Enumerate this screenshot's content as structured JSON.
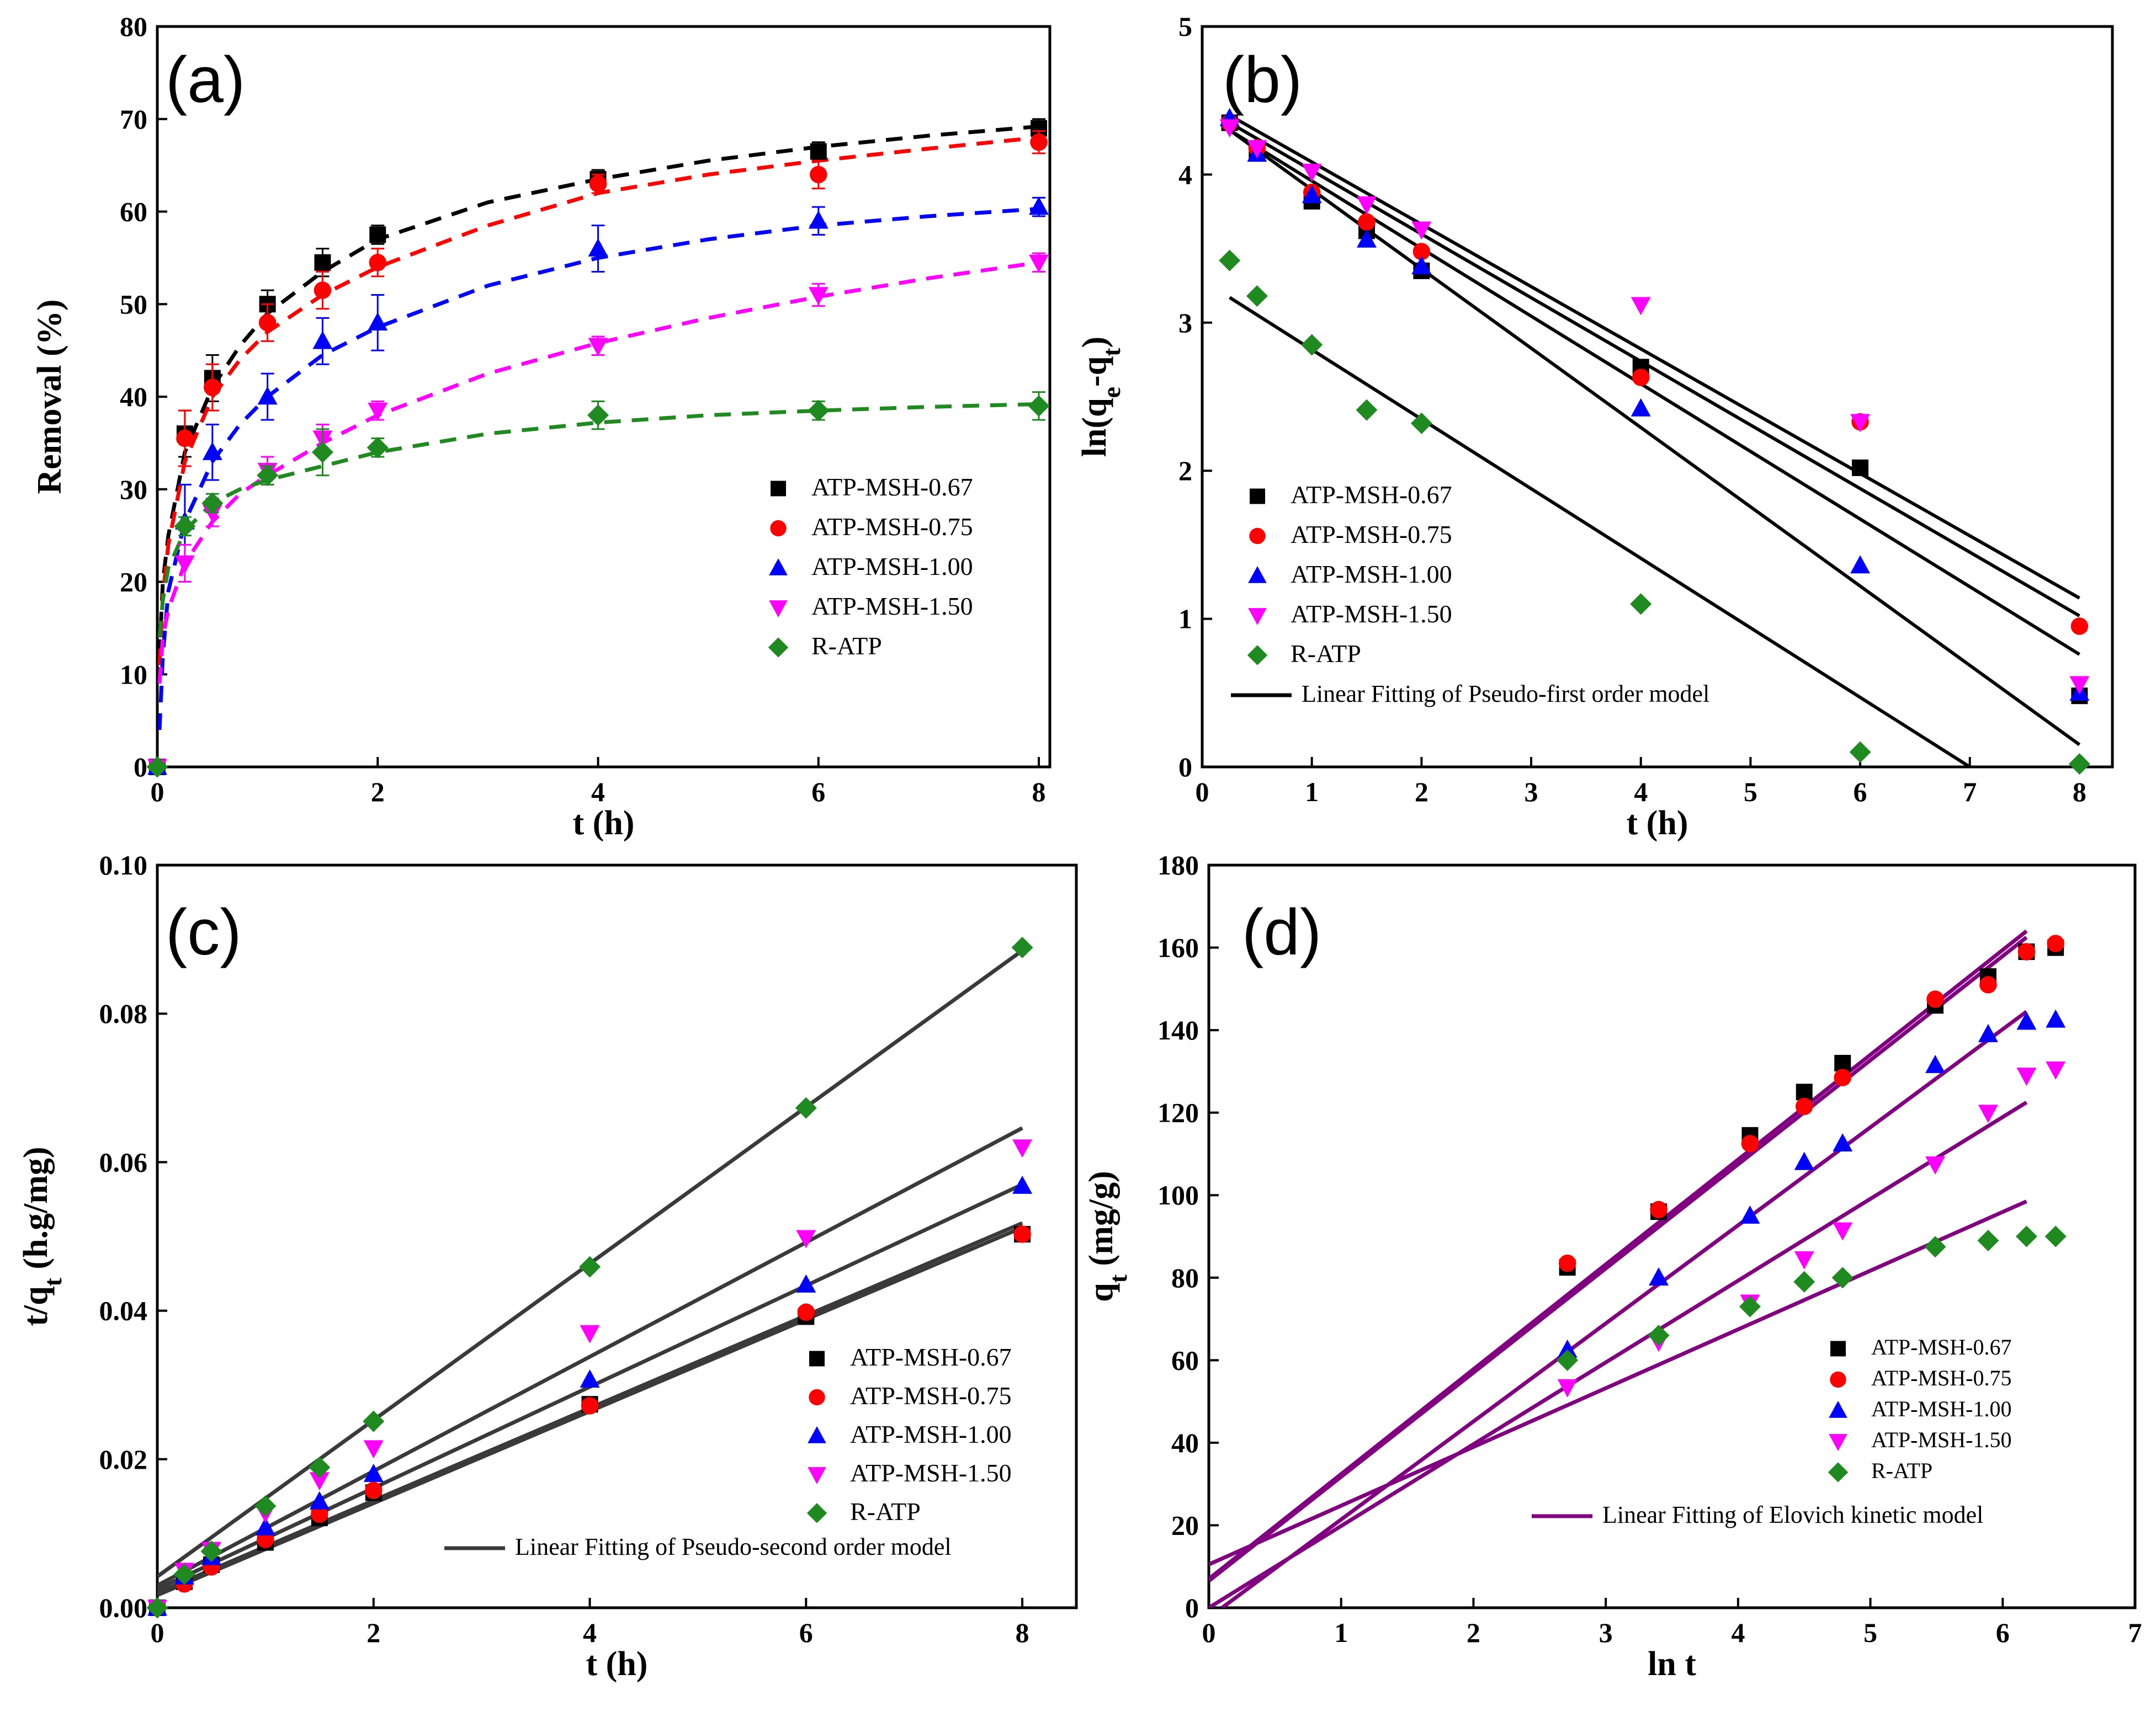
{
  "colors": {
    "ATP-MSH-0.67": "#000000",
    "ATP-MSH-0.75": "#ff0000",
    "ATP-MSH-1.00": "#0000ff",
    "ATP-MSH-1.50": "#ff00ff",
    "R-ATP": "#1f8a1f",
    "fit_b": "#000000",
    "fit_c": "#3a3a3a",
    "fit_d": "#800080"
  },
  "markers": {
    "ATP-MSH-0.67": "square",
    "ATP-MSH-0.75": "circle",
    "ATP-MSH-1.00": "triangle-up",
    "ATP-MSH-1.50": "triangle-down",
    "R-ATP": "diamond"
  },
  "chart_data": [
    {
      "id": "a",
      "panel_label": "(a)",
      "type": "scatter",
      "xlabel": "t (h)",
      "ylabel": "Removal (%)",
      "xlim": [
        0,
        8.1
      ],
      "ylim": [
        0,
        80
      ],
      "xticks": [
        0,
        2,
        4,
        6,
        8
      ],
      "yticks": [
        0,
        10,
        20,
        30,
        40,
        50,
        60,
        70,
        80
      ],
      "legend_position": "center-right",
      "fit_style": "dashed-colored",
      "series": [
        {
          "name": "ATP-MSH-0.67",
          "x": [
            0,
            0.25,
            0.5,
            1,
            1.5,
            2,
            4,
            6,
            8
          ],
          "y": [
            0,
            36,
            42,
            50,
            54.5,
            57.5,
            63.5,
            66.5,
            69
          ],
          "err": [
            0,
            2.5,
            2.5,
            1.5,
            1.5,
            1,
            1,
            1,
            1
          ]
        },
        {
          "name": "ATP-MSH-0.75",
          "x": [
            0,
            0.25,
            0.5,
            1,
            1.5,
            2,
            4,
            6,
            8
          ],
          "y": [
            0,
            35.5,
            41,
            48,
            51.5,
            54.5,
            63,
            64,
            67.5
          ],
          "err": [
            0,
            3,
            2.5,
            2,
            2,
            1.5,
            1,
            1.5,
            1.2
          ]
        },
        {
          "name": "ATP-MSH-1.00",
          "x": [
            0,
            0.25,
            0.5,
            1,
            1.5,
            2,
            4,
            6,
            8
          ],
          "y": [
            0,
            26.5,
            34,
            40,
            46,
            48,
            56,
            59,
            60.5
          ],
          "err": [
            0,
            4,
            3,
            2.5,
            2.5,
            3,
            2.5,
            1.5,
            1
          ]
        },
        {
          "name": "ATP-MSH-1.50",
          "x": [
            0,
            0.25,
            0.5,
            1,
            1.5,
            2,
            4,
            6,
            8
          ],
          "y": [
            0,
            22,
            27.5,
            32,
            35.5,
            38.5,
            45.5,
            51,
            54.5
          ],
          "err": [
            0,
            2,
            1.5,
            1.5,
            1.5,
            1,
            1,
            1.2,
            1
          ]
        },
        {
          "name": "R-ATP",
          "x": [
            0,
            0.25,
            0.5,
            1,
            1.5,
            2,
            4,
            6,
            8
          ],
          "y": [
            0,
            26,
            28.5,
            31.5,
            34,
            34.5,
            38,
            38.5,
            39
          ],
          "err": [
            0,
            1,
            1,
            1,
            2.5,
            1,
            1.5,
            1,
            1.5
          ]
        }
      ],
      "fits": [
        {
          "name": "ATP-MSH-0.67",
          "x": [
            0.02,
            0.05,
            0.1,
            0.25,
            0.5,
            0.75,
            1,
            1.5,
            2,
            3,
            4,
            5,
            6,
            7,
            8
          ],
          "y": [
            12,
            20,
            25,
            34,
            41,
            45.5,
            49,
            53.5,
            57,
            61,
            63.5,
            65.5,
            67,
            68.2,
            69.2
          ]
        },
        {
          "name": "ATP-MSH-0.75",
          "x": [
            0.02,
            0.05,
            0.1,
            0.25,
            0.5,
            0.75,
            1,
            1.5,
            2,
            3,
            4,
            5,
            6,
            7,
            8
          ],
          "y": [
            11,
            18.5,
            24,
            33,
            40,
            44,
            47,
            51,
            54,
            58.5,
            62,
            64,
            65.5,
            66.8,
            68
          ]
        },
        {
          "name": "ATP-MSH-1.00",
          "x": [
            0.02,
            0.05,
            0.1,
            0.25,
            0.5,
            0.75,
            1,
            1.5,
            2,
            3,
            4,
            5,
            6,
            7,
            8
          ],
          "y": [
            4,
            12,
            19,
            26.5,
            33,
            37,
            40,
            44.5,
            47.5,
            52,
            55,
            57,
            58.5,
            59.5,
            60.3
          ]
        },
        {
          "name": "ATP-MSH-1.50",
          "x": [
            0.02,
            0.05,
            0.1,
            0.25,
            0.5,
            0.75,
            1,
            1.5,
            2,
            3,
            4,
            5,
            6,
            7,
            8
          ],
          "y": [
            9,
            14,
            17,
            22,
            26.5,
            29.5,
            31.5,
            35,
            38,
            42.5,
            45.8,
            48.5,
            50.8,
            52.8,
            54.5
          ]
        },
        {
          "name": "R-ATP",
          "x": [
            0.02,
            0.05,
            0.1,
            0.25,
            0.5,
            0.75,
            1,
            1.5,
            2,
            3,
            4,
            5,
            6,
            7,
            8
          ],
          "y": [
            14,
            18,
            21.5,
            25.5,
            28.5,
            30,
            31,
            32.5,
            34,
            36,
            37.2,
            38,
            38.5,
            38.9,
            39.2
          ]
        }
      ]
    },
    {
      "id": "b",
      "panel_label": "(b)",
      "type": "scatter",
      "xlabel": "t (h)",
      "ylabel": "ln(qe-qt)",
      "ylabel_parts": {
        "base": "ln(q",
        "sub1": "e",
        "mid": "-q",
        "sub2": "t",
        "end": ")"
      },
      "xlim": [
        0,
        8.3
      ],
      "ylim": [
        0,
        5
      ],
      "xticks": [
        0,
        1,
        2,
        3,
        4,
        5,
        6,
        7,
        8
      ],
      "yticks": [
        0,
        1,
        2,
        3,
        4,
        5
      ],
      "legend_position": "bottom-left",
      "fit_legend_label": "Linear Fitting of Pseudo-first order model",
      "fit_style": "solid-black",
      "series": [
        {
          "name": "ATP-MSH-0.67",
          "x": [
            0.25,
            0.5,
            1,
            1.5,
            2,
            4,
            6,
            8
          ],
          "y": [
            4.35,
            4.15,
            3.82,
            3.62,
            3.35,
            2.7,
            2.02,
            0.48
          ]
        },
        {
          "name": "ATP-MSH-0.75",
          "x": [
            0.25,
            0.5,
            1,
            1.5,
            2,
            4,
            6,
            8
          ],
          "y": [
            4.35,
            4.18,
            3.88,
            3.68,
            3.48,
            2.63,
            2.33,
            0.95
          ]
        },
        {
          "name": "ATP-MSH-1.00",
          "x": [
            0.25,
            0.5,
            1,
            1.5,
            2,
            4,
            6,
            8
          ],
          "y": [
            4.38,
            4.14,
            3.86,
            3.56,
            3.38,
            2.42,
            1.36,
            0.5
          ]
        },
        {
          "name": "ATP-MSH-1.50",
          "x": [
            0.25,
            0.5,
            1,
            1.5,
            2,
            4,
            6,
            8
          ],
          "y": [
            4.32,
            4.18,
            4.02,
            3.8,
            3.63,
            3.12,
            2.33,
            0.56
          ]
        },
        {
          "name": "R-ATP",
          "x": [
            0.25,
            0.5,
            1,
            1.5,
            2,
            4,
            6,
            8
          ],
          "y": [
            3.42,
            3.18,
            2.85,
            2.41,
            2.32,
            1.1,
            0.1,
            0.02
          ]
        }
      ],
      "fits": [
        {
          "x": [
            0.25,
            8
          ],
          "y": [
            4.4,
            1.14
          ]
        },
        {
          "x": [
            0.25,
            8
          ],
          "y": [
            4.35,
            1.02
          ]
        },
        {
          "x": [
            0.25,
            8
          ],
          "y": [
            4.3,
            0.76
          ]
        },
        {
          "x": [
            0.25,
            8
          ],
          "y": [
            4.3,
            0.15
          ]
        },
        {
          "x": [
            0.25,
            7.0
          ],
          "y": [
            3.17,
            0
          ]
        }
      ]
    },
    {
      "id": "c",
      "panel_label": "(c)",
      "type": "scatter",
      "xlabel": "t (h)",
      "ylabel": "t/qt (h.g/mg)",
      "ylabel_parts": {
        "base": "t/q",
        "sub1": "t",
        "end": " (h.g/mg)"
      },
      "xlim": [
        0,
        8.5
      ],
      "ylim": [
        0,
        0.1
      ],
      "xticks": [
        0,
        2,
        4,
        6,
        8
      ],
      "yticks": [
        0.0,
        0.02,
        0.04,
        0.06,
        0.08,
        0.1
      ],
      "ytick_labels": [
        "0.00",
        "0.02",
        "0.04",
        "0.06",
        "0.08",
        "0.10"
      ],
      "legend_position": "bottom-right",
      "fit_legend_label": "Linear Fitting of Pseudo-second order model",
      "fit_style": "solid-gray",
      "series": [
        {
          "name": "ATP-MSH-0.67",
          "x": [
            0,
            0.25,
            0.5,
            1,
            1.5,
            2,
            4,
            6,
            8
          ],
          "y": [
            0,
            0.0035,
            0.0058,
            0.0088,
            0.0121,
            0.0155,
            0.0274,
            0.0392,
            0.0503
          ]
        },
        {
          "name": "ATP-MSH-0.75",
          "x": [
            0,
            0.25,
            0.5,
            1,
            1.5,
            2,
            4,
            6,
            8
          ],
          "y": [
            0,
            0.0032,
            0.0055,
            0.0092,
            0.0126,
            0.0158,
            0.0272,
            0.0398,
            0.0503
          ]
        },
        {
          "name": "ATP-MSH-1.00",
          "x": [
            0,
            0.25,
            0.5,
            1,
            1.5,
            2,
            4,
            6,
            8
          ],
          "y": [
            0,
            0.0042,
            0.0068,
            0.0108,
            0.0143,
            0.018,
            0.0307,
            0.0435,
            0.0568
          ]
        },
        {
          "name": "ATP-MSH-1.50",
          "x": [
            0,
            0.25,
            0.5,
            1,
            1.5,
            2,
            4,
            6,
            8
          ],
          "y": [
            0,
            0.005,
            0.0078,
            0.0128,
            0.0172,
            0.0215,
            0.037,
            0.0498,
            0.062
          ]
        },
        {
          "name": "R-ATP",
          "x": [
            0,
            0.25,
            0.5,
            1,
            1.5,
            2,
            4,
            6,
            8
          ],
          "y": [
            0,
            0.0045,
            0.0076,
            0.0137,
            0.0189,
            0.0251,
            0.0459,
            0.0673,
            0.0889
          ]
        }
      ],
      "fits": [
        {
          "x": [
            0,
            8
          ],
          "y": [
            0.0017,
            0.0512
          ]
        },
        {
          "x": [
            0,
            8
          ],
          "y": [
            0.002,
            0.0518
          ]
        },
        {
          "x": [
            0,
            8
          ],
          "y": [
            0.0025,
            0.057
          ]
        },
        {
          "x": [
            0,
            8
          ],
          "y": [
            0.003,
            0.0646
          ]
        },
        {
          "x": [
            0,
            8
          ],
          "y": [
            0.0042,
            0.0885
          ]
        }
      ]
    },
    {
      "id": "d",
      "panel_label": "(d)",
      "type": "scatter",
      "xlabel": "ln t",
      "ylabel": "qt (mg/g)",
      "ylabel_parts": {
        "base": "q",
        "sub1": "t",
        "end": " (mg/g)"
      },
      "xlim": [
        0,
        7
      ],
      "ylim": [
        0,
        180
      ],
      "xticks": [
        0,
        1,
        2,
        3,
        4,
        5,
        6,
        7
      ],
      "yticks": [
        0,
        20,
        40,
        60,
        80,
        100,
        120,
        140,
        160,
        180
      ],
      "legend_position": "bottom-right",
      "fit_legend_label": "Linear Fitting of Elovich kinetic model",
      "fit_style": "solid-purple",
      "series": [
        {
          "name": "ATP-MSH-0.67",
          "x": [
            2.71,
            3.4,
            4.09,
            4.5,
            4.79,
            5.49,
            5.89,
            6.18,
            6.4
          ],
          "y": [
            82.5,
            96,
            114.5,
            125,
            132,
            146,
            153,
            159,
            160
          ]
        },
        {
          "name": "ATP-MSH-0.75",
          "x": [
            2.71,
            3.4,
            4.09,
            4.5,
            4.79,
            5.49,
            5.89,
            6.18,
            6.4
          ],
          "y": [
            83.5,
            96.5,
            112.5,
            121.5,
            128.5,
            147.5,
            151,
            159,
            161
          ]
        },
        {
          "name": "ATP-MSH-1.00",
          "x": [
            2.71,
            3.4,
            4.09,
            4.5,
            4.79,
            5.49,
            5.89,
            6.18,
            6.4
          ],
          "y": [
            62.5,
            80,
            95,
            108,
            112.5,
            131.5,
            139,
            142,
            142.5
          ]
        },
        {
          "name": "ATP-MSH-1.50",
          "x": [
            2.71,
            3.4,
            4.09,
            4.5,
            4.79,
            5.49,
            5.89,
            6.18,
            6.4
          ],
          "y": [
            53.5,
            64.5,
            74,
            84.5,
            91.5,
            107.5,
            120,
            129,
            130.5
          ]
        },
        {
          "name": "R-ATP",
          "x": [
            2.71,
            3.4,
            4.09,
            4.5,
            4.79,
            5.49,
            5.89,
            6.18,
            6.4
          ],
          "y": [
            60,
            66,
            73,
            79,
            80,
            87.5,
            89,
            90,
            90
          ]
        }
      ],
      "fits": [
        {
          "x": [
            0,
            6.18
          ],
          "y": [
            7,
            164
          ]
        },
        {
          "x": [
            0,
            6.18
          ],
          "y": [
            6.5,
            162.5
          ]
        },
        {
          "x": [
            0.1,
            6.18
          ],
          "y": [
            0,
            144.5
          ]
        },
        {
          "x": [
            0,
            6.18
          ],
          "y": [
            0,
            122.5
          ]
        },
        {
          "x": [
            0,
            6.18
          ],
          "y": [
            10.5,
            98.5
          ]
        }
      ]
    }
  ]
}
